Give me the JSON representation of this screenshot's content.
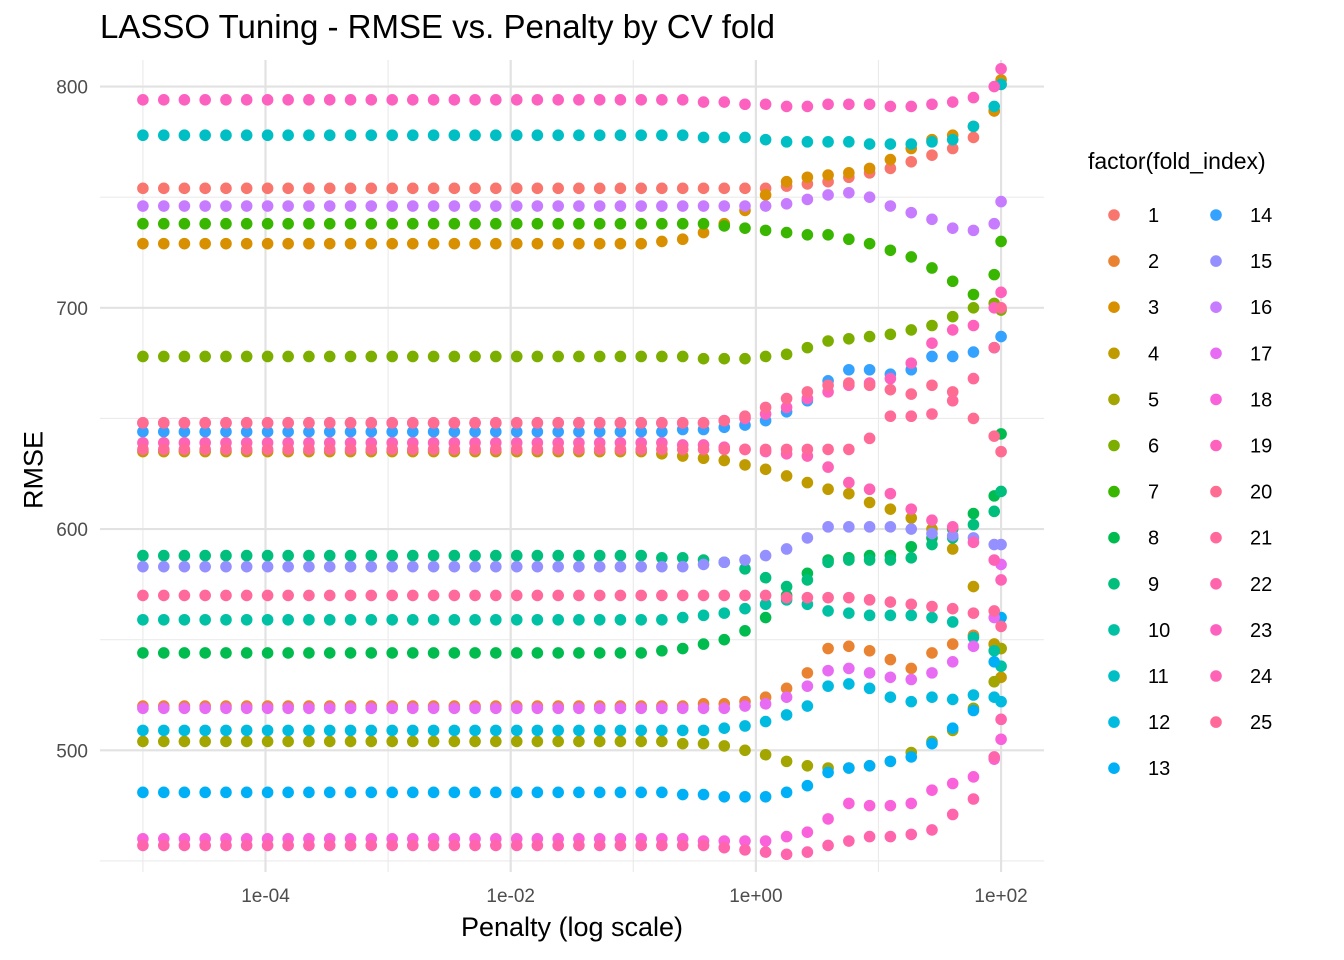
{
  "chart_data": {
    "type": "scatter",
    "title": "LASSO Tuning - RMSE vs. Penalty by CV fold",
    "xlabel": "Penalty (log scale)",
    "ylabel": "RMSE",
    "x_scale": "log10",
    "xlim": [
      1e-05,
      100
    ],
    "ylim": [
      445,
      812
    ],
    "x_ticks": [
      {
        "value": 0.0001,
        "label": "1e-04"
      },
      {
        "value": 0.01,
        "label": "1e-02"
      },
      {
        "value": 1,
        "label": "1e+00"
      },
      {
        "value": 100,
        "label": "1e+02"
      }
    ],
    "y_ticks": [
      500,
      600,
      700,
      800
    ],
    "grid": true,
    "legend": {
      "title": "factor(fold_index)",
      "placement": "right",
      "columns": 2,
      "entries": [
        "1",
        "2",
        "3",
        "4",
        "5",
        "6",
        "7",
        "8",
        "9",
        "10",
        "11",
        "12",
        "13",
        "14",
        "15",
        "16",
        "17",
        "18",
        "19",
        "20",
        "21",
        "22",
        "23",
        "24",
        "25"
      ]
    },
    "colors": [
      "#F8766D",
      "#EA8331",
      "#D89000",
      "#C09B00",
      "#A3A500",
      "#7CAE00",
      "#39B600",
      "#00BB4E",
      "#00BF7D",
      "#00C1A3",
      "#00BFC4",
      "#00BAE0",
      "#00B0F6",
      "#35A2FF",
      "#9590FF",
      "#C77CFF",
      "#E76BF3",
      "#FA62DB",
      "#FF62BC",
      "#FF6C91",
      "#FF699C",
      "#FF65AC",
      "#FC61C0",
      "#FF63B6",
      "#FF6A98"
    ],
    "x": [
      1e-05,
      1.48e-05,
      2.18e-05,
      3.22e-05,
      4.76e-05,
      7.02e-05,
      0.000104,
      0.000153,
      0.000226,
      0.000334,
      0.000494,
      0.000729,
      0.00108,
      0.00159,
      0.00235,
      0.00347,
      0.00512,
      0.00756,
      0.0112,
      0.0165,
      0.0244,
      0.036,
      0.0532,
      0.0785,
      0.116,
      0.171,
      0.253,
      0.374,
      0.552,
      0.815,
      1.2,
      1.78,
      2.63,
      3.88,
      5.73,
      8.46,
      12.5,
      18.5,
      27.3,
      40.3,
      59.5,
      87.9,
      100
    ],
    "series": [
      {
        "name": "1",
        "y": [
          754,
          754,
          754,
          754,
          754,
          754,
          754,
          754,
          754,
          754,
          754,
          754,
          754,
          754,
          754,
          754,
          754,
          754,
          754,
          754,
          754,
          754,
          754,
          754,
          754,
          754,
          754,
          754,
          754,
          754,
          754,
          755,
          756,
          757,
          759,
          761,
          763,
          766,
          769,
          772,
          777,
          789,
          801
        ]
      },
      {
        "name": "2",
        "y": [
          520,
          520,
          520,
          520,
          520,
          520,
          520,
          520,
          520,
          520,
          520,
          520,
          520,
          520,
          520,
          520,
          520,
          520,
          520,
          520,
          520,
          520,
          520,
          520,
          520,
          520,
          520,
          521,
          521,
          522,
          524,
          528,
          535,
          546,
          547,
          545,
          541,
          537,
          544,
          548,
          552,
          548,
          546
        ]
      },
      {
        "name": "3",
        "y": [
          729,
          729,
          729,
          729,
          729,
          729,
          729,
          729,
          729,
          729,
          729,
          729,
          729,
          729,
          729,
          729,
          729,
          729,
          729,
          729,
          729,
          729,
          729,
          729,
          729,
          730,
          731,
          734,
          738,
          744,
          751,
          757,
          759,
          760,
          761,
          763,
          767,
          772,
          776,
          778,
          782,
          789,
          803
        ]
      },
      {
        "name": "4",
        "y": [
          635,
          635,
          635,
          635,
          635,
          635,
          635,
          635,
          635,
          635,
          635,
          635,
          635,
          635,
          635,
          635,
          635,
          635,
          635,
          635,
          635,
          635,
          635,
          635,
          635,
          634,
          633,
          632,
          631,
          629,
          627,
          624,
          621,
          618,
          616,
          612,
          609,
          605,
          600,
          591,
          574,
          548,
          533
        ]
      },
      {
        "name": "5",
        "y": [
          504,
          504,
          504,
          504,
          504,
          504,
          504,
          504,
          504,
          504,
          504,
          504,
          504,
          504,
          504,
          504,
          504,
          504,
          504,
          504,
          504,
          504,
          504,
          504,
          504,
          504,
          503,
          503,
          502,
          500,
          498,
          495,
          493,
          492,
          492,
          493,
          495,
          499,
          504,
          509,
          519,
          531,
          546
        ]
      },
      {
        "name": "6",
        "y": [
          678,
          678,
          678,
          678,
          678,
          678,
          678,
          678,
          678,
          678,
          678,
          678,
          678,
          678,
          678,
          678,
          678,
          678,
          678,
          678,
          678,
          678,
          678,
          678,
          678,
          678,
          678,
          677,
          677,
          677,
          678,
          679,
          682,
          685,
          686,
          687,
          688,
          690,
          692,
          696,
          700,
          702,
          699
        ]
      },
      {
        "name": "7",
        "y": [
          738,
          738,
          738,
          738,
          738,
          738,
          738,
          738,
          738,
          738,
          738,
          738,
          738,
          738,
          738,
          738,
          738,
          738,
          738,
          738,
          738,
          738,
          738,
          738,
          738,
          738,
          738,
          738,
          737,
          736,
          735,
          734,
          733,
          733,
          731,
          729,
          726,
          723,
          718,
          712,
          706,
          715,
          730
        ]
      },
      {
        "name": "8",
        "y": [
          544,
          544,
          544,
          544,
          544,
          544,
          544,
          544,
          544,
          544,
          544,
          544,
          544,
          544,
          544,
          544,
          544,
          544,
          544,
          544,
          544,
          544,
          544,
          544,
          544,
          545,
          546,
          548,
          550,
          554,
          560,
          570,
          580,
          586,
          587,
          588,
          588,
          592,
          596,
          600,
          607,
          615,
          643
        ]
      },
      {
        "name": "9",
        "y": [
          588,
          588,
          588,
          588,
          588,
          588,
          588,
          588,
          588,
          588,
          588,
          588,
          588,
          588,
          588,
          588,
          588,
          588,
          588,
          588,
          588,
          588,
          588,
          588,
          588,
          587,
          587,
          586,
          585,
          582,
          578,
          574,
          577,
          585,
          586,
          586,
          586,
          587,
          593,
          596,
          602,
          608,
          617
        ]
      },
      {
        "name": "10",
        "y": [
          559,
          559,
          559,
          559,
          559,
          559,
          559,
          559,
          559,
          559,
          559,
          559,
          559,
          559,
          559,
          559,
          559,
          559,
          559,
          559,
          559,
          559,
          559,
          559,
          559,
          559,
          560,
          561,
          562,
          564,
          566,
          568,
          566,
          563,
          562,
          561,
          561,
          561,
          560,
          558,
          551,
          545,
          538
        ]
      },
      {
        "name": "11",
        "y": [
          778,
          778,
          778,
          778,
          778,
          778,
          778,
          778,
          778,
          778,
          778,
          778,
          778,
          778,
          778,
          778,
          778,
          778,
          778,
          778,
          778,
          778,
          778,
          778,
          778,
          778,
          778,
          777,
          777,
          777,
          776,
          775,
          775,
          775,
          775,
          774,
          774,
          774,
          775,
          776,
          782,
          791,
          801
        ]
      },
      {
        "name": "12",
        "y": [
          509,
          509,
          509,
          509,
          509,
          509,
          509,
          509,
          509,
          509,
          509,
          509,
          509,
          509,
          509,
          509,
          509,
          509,
          509,
          509,
          509,
          509,
          509,
          509,
          509,
          509,
          509,
          509,
          510,
          511,
          513,
          516,
          520,
          529,
          530,
          528,
          524,
          522,
          524,
          523,
          525,
          524,
          522
        ]
      },
      {
        "name": "13",
        "y": [
          481,
          481,
          481,
          481,
          481,
          481,
          481,
          481,
          481,
          481,
          481,
          481,
          481,
          481,
          481,
          481,
          481,
          481,
          481,
          481,
          481,
          481,
          481,
          481,
          481,
          481,
          480,
          480,
          479,
          479,
          479,
          481,
          484,
          490,
          492,
          493,
          495,
          497,
          503,
          510,
          518,
          540,
          560
        ]
      },
      {
        "name": "14",
        "y": [
          644,
          644,
          644,
          644,
          644,
          644,
          644,
          644,
          644,
          644,
          644,
          644,
          644,
          644,
          644,
          644,
          644,
          644,
          644,
          644,
          644,
          644,
          644,
          644,
          644,
          644,
          645,
          645,
          646,
          647,
          649,
          653,
          658,
          667,
          672,
          672,
          670,
          672,
          678,
          678,
          680,
          682,
          687
        ]
      },
      {
        "name": "15",
        "y": [
          583,
          583,
          583,
          583,
          583,
          583,
          583,
          583,
          583,
          583,
          583,
          583,
          583,
          583,
          583,
          583,
          583,
          583,
          583,
          583,
          583,
          583,
          583,
          583,
          583,
          583,
          583,
          584,
          585,
          586,
          588,
          591,
          596,
          601,
          601,
          601,
          601,
          600,
          598,
          597,
          596,
          593,
          593
        ]
      },
      {
        "name": "16",
        "y": [
          746,
          746,
          746,
          746,
          746,
          746,
          746,
          746,
          746,
          746,
          746,
          746,
          746,
          746,
          746,
          746,
          746,
          746,
          746,
          746,
          746,
          746,
          746,
          746,
          746,
          746,
          746,
          746,
          746,
          746,
          746,
          747,
          749,
          751,
          752,
          750,
          746,
          743,
          740,
          736,
          735,
          738,
          748
        ]
      },
      {
        "name": "17",
        "y": [
          519,
          519,
          519,
          519,
          519,
          519,
          519,
          519,
          519,
          519,
          519,
          519,
          519,
          519,
          519,
          519,
          519,
          519,
          519,
          519,
          519,
          519,
          519,
          519,
          519,
          519,
          519,
          519,
          519,
          520,
          521,
          524,
          529,
          536,
          537,
          535,
          533,
          532,
          535,
          540,
          547,
          560,
          584
        ]
      },
      {
        "name": "18",
        "y": [
          460,
          460,
          460,
          460,
          460,
          460,
          460,
          460,
          460,
          460,
          460,
          460,
          460,
          460,
          460,
          460,
          460,
          460,
          460,
          460,
          460,
          460,
          460,
          460,
          460,
          460,
          460,
          459,
          459,
          459,
          459,
          461,
          463,
          469,
          476,
          475,
          475,
          476,
          482,
          485,
          488,
          496,
          505
        ]
      },
      {
        "name": "19",
        "y": [
          648,
          648,
          648,
          648,
          648,
          648,
          648,
          648,
          648,
          648,
          648,
          648,
          648,
          648,
          648,
          648,
          648,
          648,
          648,
          648,
          648,
          648,
          648,
          648,
          648,
          648,
          648,
          648,
          649,
          650,
          652,
          655,
          659,
          662,
          665,
          666,
          668,
          675,
          684,
          690,
          692,
          700,
          707
        ]
      },
      {
        "name": "20",
        "y": [
          648,
          648,
          648,
          648,
          648,
          648,
          648,
          648,
          648,
          648,
          648,
          648,
          648,
          648,
          648,
          648,
          648,
          648,
          648,
          648,
          648,
          648,
          648,
          648,
          648,
          648,
          648,
          648,
          649,
          651,
          655,
          659,
          662,
          665,
          666,
          665,
          663,
          661,
          665,
          662,
          650,
          642,
          635
        ]
      },
      {
        "name": "21",
        "y": [
          570,
          570,
          570,
          570,
          570,
          570,
          570,
          570,
          570,
          570,
          570,
          570,
          570,
          570,
          570,
          570,
          570,
          570,
          570,
          570,
          570,
          570,
          570,
          570,
          570,
          570,
          570,
          570,
          570,
          570,
          570,
          569,
          569,
          569,
          569,
          568,
          567,
          566,
          565,
          564,
          562,
          563,
          556
        ]
      },
      {
        "name": "22",
        "y": [
          457,
          457,
          457,
          457,
          457,
          457,
          457,
          457,
          457,
          457,
          457,
          457,
          457,
          457,
          457,
          457,
          457,
          457,
          457,
          457,
          457,
          457,
          457,
          457,
          457,
          457,
          457,
          457,
          456,
          455,
          454,
          453,
          454,
          457,
          459,
          461,
          461,
          462,
          464,
          471,
          478,
          497,
          514
        ]
      },
      {
        "name": "23",
        "y": [
          794,
          794,
          794,
          794,
          794,
          794,
          794,
          794,
          794,
          794,
          794,
          794,
          794,
          794,
          794,
          794,
          794,
          794,
          794,
          794,
          794,
          794,
          794,
          794,
          794,
          794,
          794,
          793,
          793,
          792,
          792,
          791,
          791,
          792,
          792,
          792,
          791,
          791,
          792,
          793,
          795,
          800,
          808
        ]
      },
      {
        "name": "24",
        "y": [
          639,
          639,
          639,
          639,
          639,
          639,
          639,
          639,
          639,
          639,
          639,
          639,
          639,
          639,
          639,
          639,
          639,
          639,
          639,
          639,
          639,
          639,
          639,
          639,
          639,
          639,
          638,
          638,
          637,
          636,
          635,
          634,
          633,
          628,
          621,
          618,
          616,
          609,
          604,
          601,
          594,
          586,
          577
        ]
      },
      {
        "name": "25",
        "y": [
          636,
          636,
          636,
          636,
          636,
          636,
          636,
          636,
          636,
          636,
          636,
          636,
          636,
          636,
          636,
          636,
          636,
          636,
          636,
          636,
          636,
          636,
          636,
          636,
          636,
          636,
          636,
          636,
          636,
          636,
          636,
          636,
          636,
          636,
          636,
          641,
          651,
          651,
          652,
          658,
          668,
          682,
          700
        ]
      }
    ]
  }
}
